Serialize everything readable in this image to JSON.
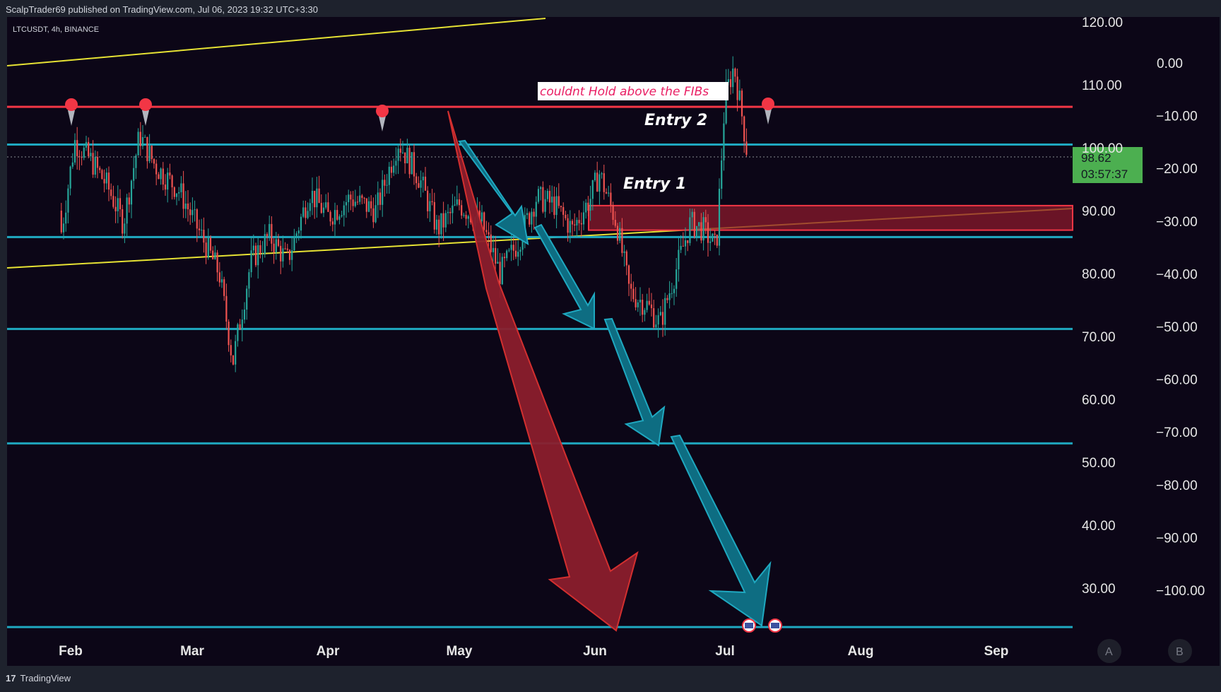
{
  "header": {
    "published": "ScalpTrader69 published on TradingView.com, Jul 06, 2023 19:32 UTC+3:30"
  },
  "symbol_info": "LTCUSDT, 4h, BINANCE",
  "footer": {
    "brand": "TradingView"
  },
  "price_tag": {
    "price": "98.62",
    "countdown": "03:57:37"
  },
  "buttons": {
    "a": "A",
    "b": "B"
  },
  "annotations": {
    "fib_note": "couldnt Hold above the FIBs",
    "entry1": "Entry 1",
    "entry2": "Entry 2"
  },
  "colors": {
    "background": "#0c0617",
    "cyan_line": "#1fa8c0",
    "red_line": "#f23645",
    "yellow_line": "#e6e234",
    "up_candle": "#26a69a",
    "down_candle": "#ef5350",
    "red_arrow": "#a31e35",
    "teal_arrow": "#0e6d82",
    "price_tag_bg": "#4caf50",
    "zone": "#8a1a2c"
  },
  "chart_data": {
    "type": "candlestick",
    "symbol": "LTCUSDT",
    "interval": "4h",
    "exchange": "BINANCE",
    "y_axis_primary": {
      "ticks": [
        "120.00",
        "110.00",
        "100.00",
        "90.00",
        "80.00",
        "70.00",
        "60.00",
        "50.00",
        "40.00",
        "30.00"
      ],
      "range": [
        22,
        122
      ]
    },
    "y_axis_secondary": {
      "ticks": [
        "0.00",
        "−10.00",
        "−20.00",
        "−30.00",
        "−40.00",
        "−50.00",
        "−60.00",
        "−70.00",
        "−80.00",
        "−90.00",
        "−100.00"
      ]
    },
    "x_axis": {
      "months": [
        "Feb",
        "Mar",
        "Apr",
        "May",
        "Jun",
        "Jul",
        "Aug",
        "Sep"
      ]
    },
    "horizontal_levels": [
      {
        "price": 106.5,
        "color": "red"
      },
      {
        "price": 100.5,
        "color": "cyan"
      },
      {
        "price": 85.8,
        "color": "cyan"
      },
      {
        "price": 71.2,
        "color": "cyan"
      },
      {
        "price": 53.0,
        "color": "cyan"
      },
      {
        "price": 23.8,
        "color": "cyan"
      }
    ],
    "zone": {
      "from": 86.9,
      "to": 90.8,
      "start_month": "Jun"
    },
    "last_price": 98.62,
    "price_path": [
      {
        "t": "Jan 25",
        "p": 90
      },
      {
        "t": "Jan 28",
        "p": 84
      },
      {
        "t": "Feb 02",
        "p": 101
      },
      {
        "t": "Feb 06",
        "p": 98
      },
      {
        "t": "Feb 10",
        "p": 94
      },
      {
        "t": "Feb 14",
        "p": 88
      },
      {
        "t": "Feb 18",
        "p": 102
      },
      {
        "t": "Feb 22",
        "p": 97
      },
      {
        "t": "Feb 28",
        "p": 93
      },
      {
        "t": "Mar 03",
        "p": 86
      },
      {
        "t": "Mar 07",
        "p": 80
      },
      {
        "t": "Mar 10",
        "p": 66
      },
      {
        "t": "Mar 14",
        "p": 82
      },
      {
        "t": "Mar 18",
        "p": 86
      },
      {
        "t": "Mar 22",
        "p": 82
      },
      {
        "t": "Mar 27",
        "p": 93
      },
      {
        "t": "Apr 01",
        "p": 89
      },
      {
        "t": "Apr 06",
        "p": 92
      },
      {
        "t": "Apr 12",
        "p": 90
      },
      {
        "t": "Apr 17",
        "p": 101
      },
      {
        "t": "Apr 22",
        "p": 95
      },
      {
        "t": "Apr 26",
        "p": 87
      },
      {
        "t": "May 01",
        "p": 91
      },
      {
        "t": "May 06",
        "p": 88
      },
      {
        "t": "May 10",
        "p": 80
      },
      {
        "t": "May 14",
        "p": 85
      },
      {
        "t": "May 18",
        "p": 92
      },
      {
        "t": "May 22",
        "p": 91
      },
      {
        "t": "May 26",
        "p": 87
      },
      {
        "t": "May 30",
        "p": 92
      },
      {
        "t": "Jun 02",
        "p": 96
      },
      {
        "t": "Jun 06",
        "p": 88
      },
      {
        "t": "Jun 09",
        "p": 77
      },
      {
        "t": "Jun 13",
        "p": 75
      },
      {
        "t": "Jun 16",
        "p": 72
      },
      {
        "t": "Jun 19",
        "p": 79
      },
      {
        "t": "Jun 23",
        "p": 88
      },
      {
        "t": "Jun 26",
        "p": 87
      },
      {
        "t": "Jun 29",
        "p": 84
      },
      {
        "t": "Jul 01",
        "p": 108
      },
      {
        "t": "Jul 03",
        "p": 113
      },
      {
        "t": "Jul 05",
        "p": 104
      },
      {
        "t": "Jul 06",
        "p": 98.62
      }
    ]
  }
}
